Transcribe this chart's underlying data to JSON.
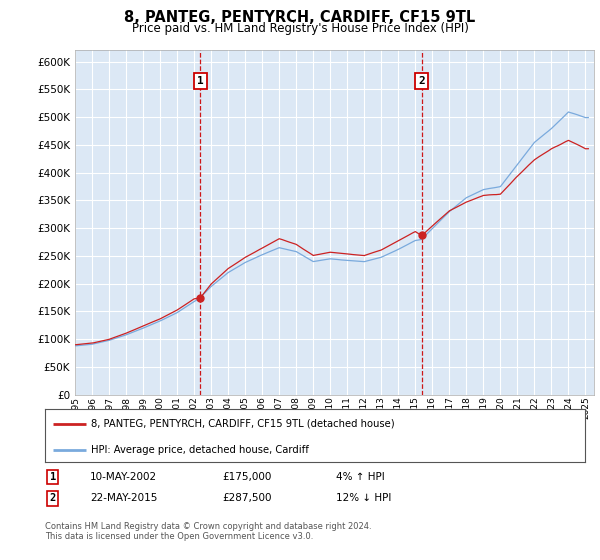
{
  "title": "8, PANTEG, PENTYRCH, CARDIFF, CF15 9TL",
  "subtitle": "Price paid vs. HM Land Registry's House Price Index (HPI)",
  "ylabel_ticks": [
    "£0",
    "£50K",
    "£100K",
    "£150K",
    "£200K",
    "£250K",
    "£300K",
    "£350K",
    "£400K",
    "£450K",
    "£500K",
    "£550K",
    "£600K"
  ],
  "ytick_values": [
    0,
    50000,
    100000,
    150000,
    200000,
    250000,
    300000,
    350000,
    400000,
    450000,
    500000,
    550000,
    600000
  ],
  "xlim_start": 1995,
  "xlim_end": 2025.5,
  "ylim_min": 0,
  "ylim_max": 620000,
  "plot_bg_color": "#dce8f5",
  "grid_color": "#ffffff",
  "sale1_x": 2002.36,
  "sale1_price": 175000,
  "sale2_x": 2015.38,
  "sale2_price": 287500,
  "hpi_line_color": "#7aaadd",
  "price_line_color": "#cc2222",
  "legend_label1": "8, PANTEG, PENTYRCH, CARDIFF, CF15 9TL (detached house)",
  "legend_label2": "HPI: Average price, detached house, Cardiff",
  "footer": "Contains HM Land Registry data © Crown copyright and database right 2024.\nThis data is licensed under the Open Government Licence v3.0."
}
